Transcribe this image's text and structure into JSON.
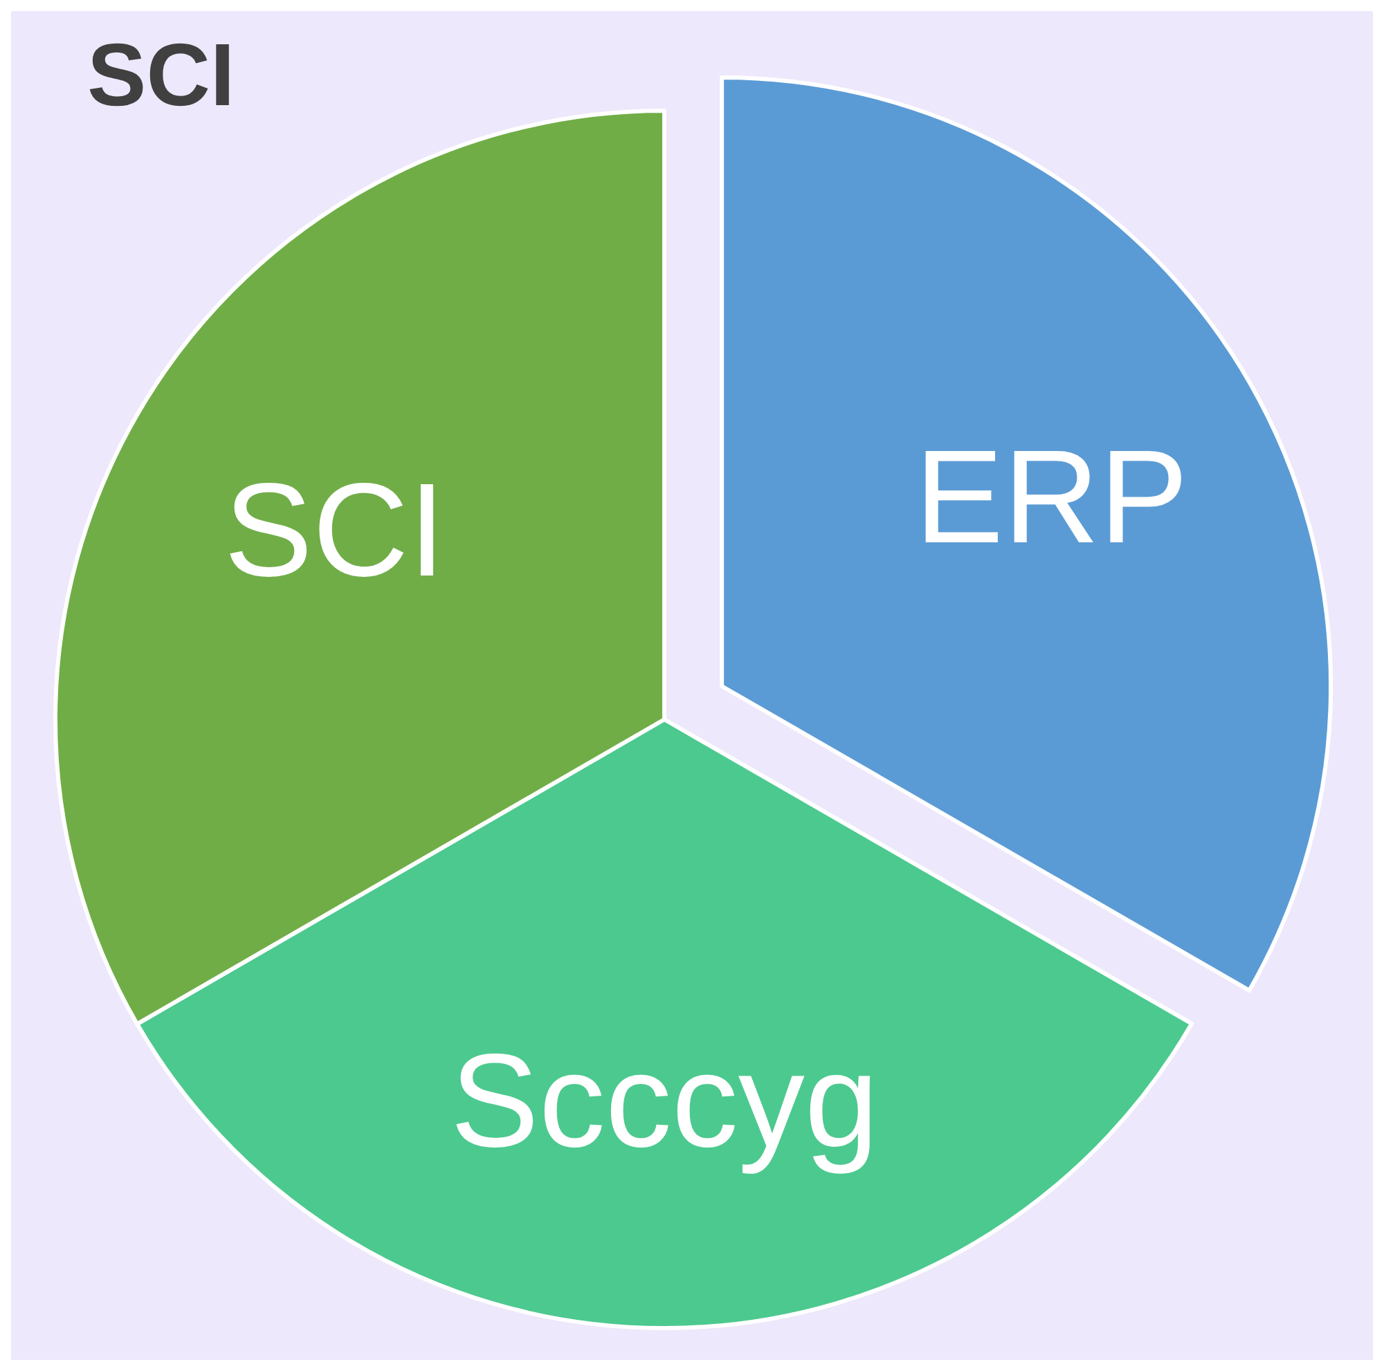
{
  "chart_data": {
    "type": "pie",
    "title": "SCI",
    "categories": [
      "ERP",
      "Scccyg",
      "SCI"
    ],
    "values": [
      33.33,
      33.33,
      33.34
    ],
    "colors": [
      "#5b9bd5",
      "#4cc98f",
      "#70ad47"
    ]
  }
}
